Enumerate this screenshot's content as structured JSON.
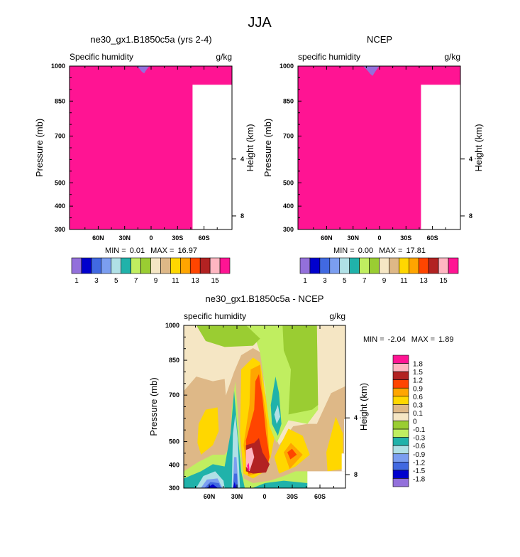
{
  "title": "JJA",
  "chart_data": [
    {
      "type": "heatmap",
      "subtype": "filled-contour",
      "title": "ne30_gx1.B1850c5a (yrs 2-4)",
      "left_label": "Specific humidity",
      "units": "g/kg",
      "ylabel": "Pressure (mb)",
      "y2label": "Height (km)",
      "yticks": [
        "300",
        "400",
        "500",
        "700",
        "850",
        "1000"
      ],
      "ytick_values": [
        300,
        400,
        500,
        700,
        850,
        1000
      ],
      "y2ticks": [
        "8",
        "4"
      ],
      "y2tick_pressures": [
        358,
        602
      ],
      "xticks": [
        "60N",
        "30N",
        "0",
        "30S",
        "60S"
      ],
      "xtick_values": [
        60,
        30,
        0,
        -30,
        -60
      ],
      "ylim": [
        1000,
        300
      ],
      "xlim": [
        90,
        -90
      ],
      "min_label": "MIN =",
      "min": "0.01",
      "max_label": "MAX =",
      "max": "16.97",
      "legend_labels": [
        "1",
        "3",
        "5",
        "7",
        "9",
        "11",
        "13",
        "15"
      ],
      "colors": [
        "#9370DB",
        "#0000CD",
        "#4169E1",
        "#7B9EF0",
        "#B0E0E6",
        "#20B2AA",
        "#C0EE60",
        "#9ACD32",
        "#F5E6C4",
        "#DEB887",
        "#FFD700",
        "#FFA500",
        "#FF4500",
        "#B22222",
        "#FFB6C1",
        "#FF1493"
      ]
    },
    {
      "type": "heatmap",
      "subtype": "filled-contour",
      "title": "NCEP",
      "left_label": "specific humidity",
      "units": "g/kg",
      "ylabel": "Pressure (mb)",
      "y2label": "Height (km)",
      "yticks": [
        "300",
        "400",
        "500",
        "700",
        "850",
        "1000"
      ],
      "ytick_values": [
        300,
        400,
        500,
        700,
        850,
        1000
      ],
      "y2ticks": [
        "8",
        "4"
      ],
      "y2tick_pressures": [
        358,
        602
      ],
      "xticks": [
        "60N",
        "30N",
        "0",
        "30S",
        "60S"
      ],
      "xtick_values": [
        60,
        30,
        0,
        -30,
        -60
      ],
      "ylim": [
        1000,
        300
      ],
      "xlim": [
        90,
        -90
      ],
      "min_label": "MIN =",
      "min": "0.00",
      "max_label": "MAX =",
      "max": "17.81",
      "legend_labels": [
        "1",
        "3",
        "5",
        "7",
        "9",
        "11",
        "13",
        "15"
      ],
      "colors": [
        "#9370DB",
        "#0000CD",
        "#4169E1",
        "#7B9EF0",
        "#B0E0E6",
        "#20B2AA",
        "#C0EE60",
        "#9ACD32",
        "#F5E6C4",
        "#DEB887",
        "#FFD700",
        "#FFA500",
        "#FF4500",
        "#B22222",
        "#FFB6C1",
        "#FF1493"
      ]
    },
    {
      "type": "heatmap",
      "subtype": "filled-contour-difference",
      "title": "ne30_gx1.B1850c5a - NCEP",
      "left_label": "specific humidity",
      "units": "g/kg",
      "ylabel": "Pressure (mb)",
      "y2label": "Height (km)",
      "yticks": [
        "300",
        "400",
        "500",
        "700",
        "850",
        "1000"
      ],
      "ytick_values": [
        300,
        400,
        500,
        700,
        850,
        1000
      ],
      "y2ticks": [
        "8",
        "4"
      ],
      "y2tick_pressures": [
        358,
        602
      ],
      "xticks": [
        "60N",
        "30N",
        "0",
        "30S",
        "60S"
      ],
      "xtick_values": [
        60,
        30,
        0,
        -30,
        -60
      ],
      "ylim": [
        1000,
        300
      ],
      "xlim": [
        90,
        -90
      ],
      "min_label": "MIN =",
      "min": "-2.04",
      "max_label": "MAX =",
      "max": "1.89",
      "legend_labels": [
        "1.8",
        "1.5",
        "1.2",
        "0.9",
        "0.6",
        "0.3",
        "0.1",
        "0",
        "-0.1",
        "-0.3",
        "-0.6",
        "-0.9",
        "-1.2",
        "-1.5",
        "-1.8"
      ],
      "colors": [
        "#FF1493",
        "#FFB6C1",
        "#B22222",
        "#FF4500",
        "#FFA500",
        "#FFD700",
        "#DEB887",
        "#F5E6C4",
        "#9ACD32",
        "#C0EE60",
        "#20B2AA",
        "#B0E0E6",
        "#7B9EF0",
        "#4169E1",
        "#0000CD",
        "#9370DB"
      ]
    }
  ]
}
